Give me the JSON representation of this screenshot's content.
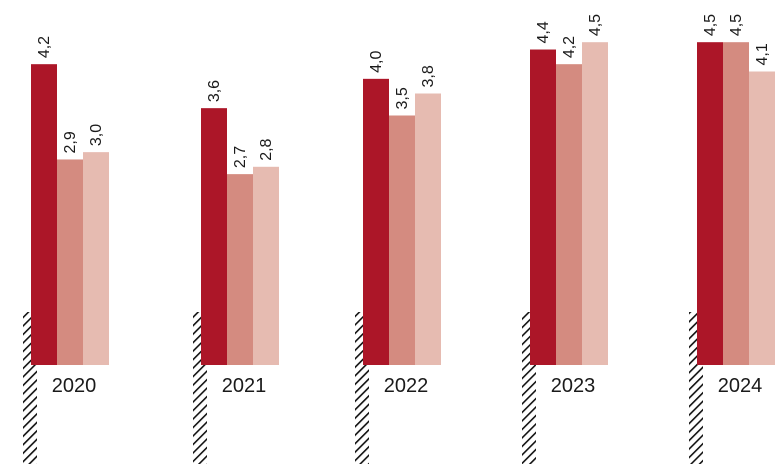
{
  "chart_data": {
    "type": "bar",
    "title": "",
    "xlabel": "",
    "ylabel": "",
    "categories": [
      "2020",
      "2021",
      "2022",
      "2023",
      "2024"
    ],
    "series": [
      {
        "values": [
          4.2,
          3.6,
          4.0,
          4.4,
          4.5
        ],
        "color": "#AC1628"
      },
      {
        "values": [
          2.9,
          2.7,
          3.5,
          4.2,
          4.5
        ],
        "color": "#D48B80"
      },
      {
        "values": [
          3.0,
          2.8,
          3.8,
          4.5,
          4.1
        ],
        "color": "#E6BBB1"
      }
    ],
    "value_labels": [
      [
        "4,2",
        "2,9",
        "3,0"
      ],
      [
        "3,6",
        "2,7",
        "2,8"
      ],
      [
        "4,0",
        "3,5",
        "3,8"
      ],
      [
        "4,4",
        "4,2",
        "4,5"
      ],
      [
        "4,5",
        "4,5",
        "4,1"
      ]
    ],
    "axis_break": true,
    "grid": false,
    "legend": "none"
  }
}
